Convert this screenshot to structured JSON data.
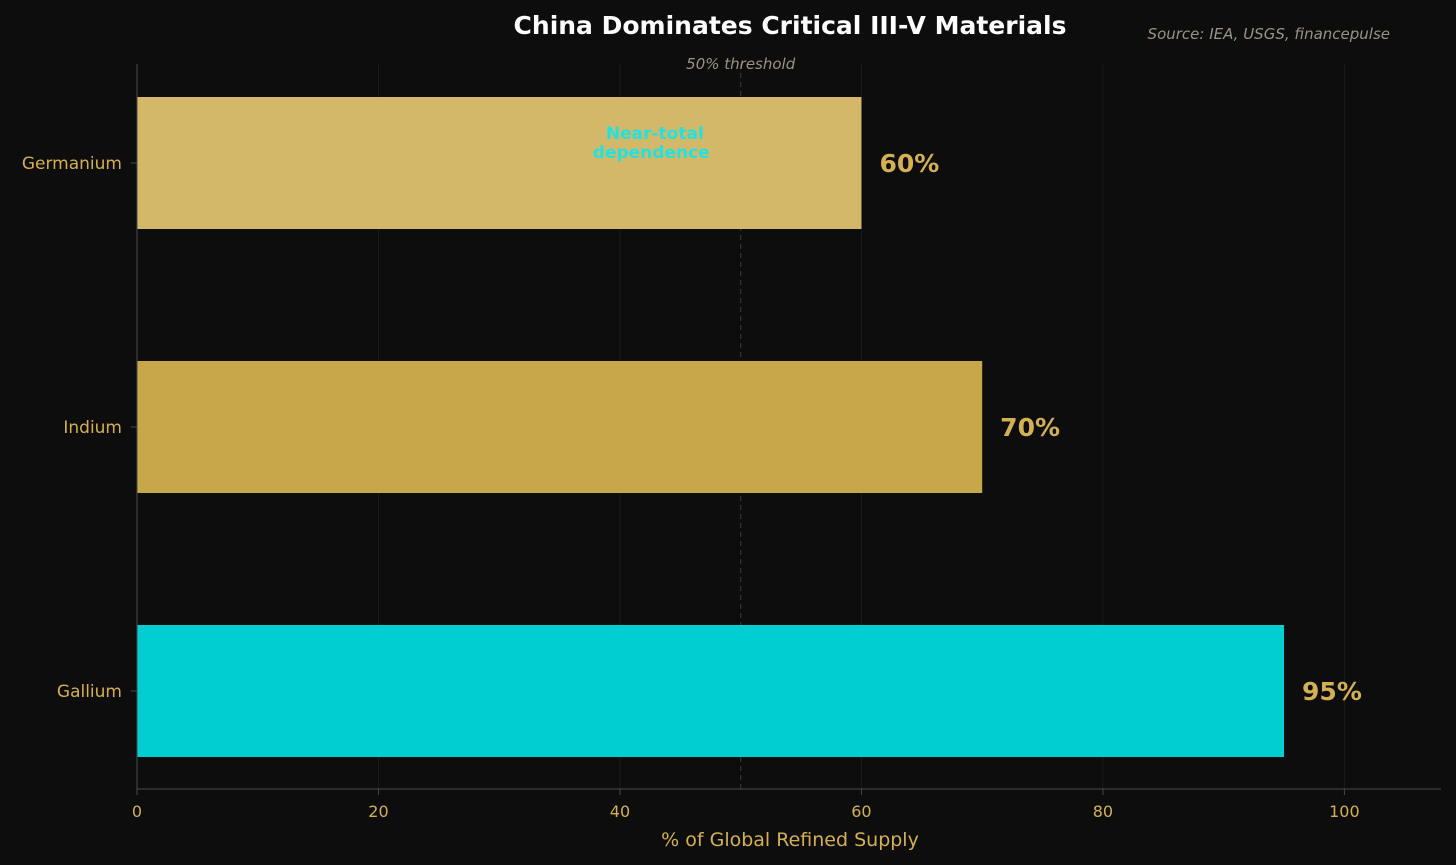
{
  "chart_data": {
    "type": "bar",
    "orientation": "horizontal",
    "title": "China Dominates Critical III-V Materials",
    "source": "Source: IEA, USGS, financepulse",
    "xlabel": "% of Global Refined Supply",
    "ylabel": "",
    "xlim": [
      0,
      108
    ],
    "x_ticks": [
      0,
      20,
      40,
      60,
      80,
      100
    ],
    "categories": [
      "Germanium",
      "Indium",
      "Gallium"
    ],
    "values": [
      60,
      70,
      95
    ],
    "value_labels": [
      "60%",
      "70%",
      "95%"
    ],
    "bar_colors": [
      "#d4b86a",
      "#c8a74a",
      "#00ced1"
    ],
    "threshold": {
      "value": 50,
      "label": "50% threshold"
    },
    "annotation": {
      "lines": [
        "Near-total",
        "dependence"
      ],
      "color": "#22e1e1"
    },
    "grid": true
  },
  "colors": {
    "background": "#0d0d0d",
    "accent_gold": "#d4b055",
    "accent_cyan": "#00ced1",
    "axis": "#4a4a4a",
    "grid": "#1c1c1c",
    "muted_text": "#9a9386"
  }
}
